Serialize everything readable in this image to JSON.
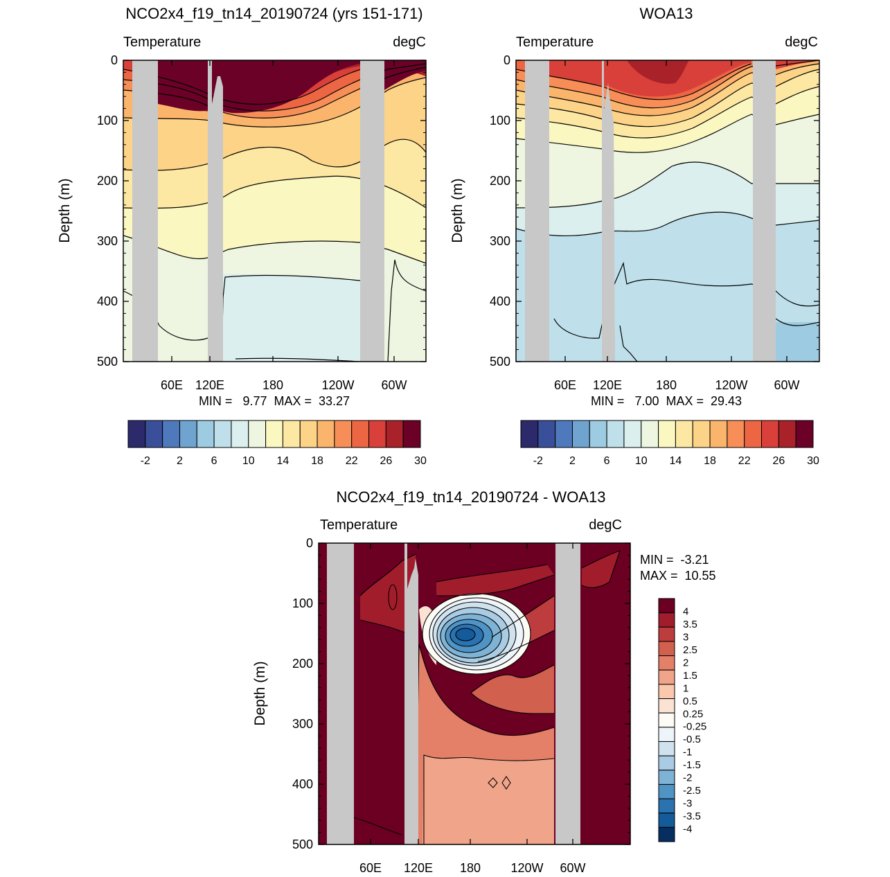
{
  "colors": {
    "temperature_scale": [
      "#2c2a6b",
      "#3a4f9a",
      "#4f79bd",
      "#6ea4cf",
      "#9ccbe2",
      "#bfe0ea",
      "#dcefef",
      "#eef6e2",
      "#fbf7c0",
      "#fde8a3",
      "#fdd387",
      "#fbb46c",
      "#f78e57",
      "#ec6644",
      "#d9403a",
      "#a92129",
      "#6b0127"
    ],
    "difference_scale": [
      "#062e60",
      "#145b9c",
      "#2b72b0",
      "#4f94c4",
      "#7fb3d6",
      "#a9cce4",
      "#cfe2ee",
      "#eef5fa",
      "#fdfbf6",
      "#fbe3d4",
      "#f9c8ad",
      "#f0a58a",
      "#e48067",
      "#d2604f",
      "#bd3c3e",
      "#a11d2c",
      "#6b0022"
    ],
    "land_mask": "#c8c8c8"
  },
  "chart_data": [
    {
      "type": "heatmap",
      "title": "NCO2x4_f19_tn14_20190724 (yrs 151-171)",
      "left_label": "Temperature",
      "right_label": "degC",
      "ylabel": "Depth (m)",
      "ylim": [
        0,
        500
      ],
      "y_ticks": [
        "0",
        "100",
        "200",
        "300",
        "400",
        "500"
      ],
      "x_ticks": [
        "60E",
        "120E",
        "180",
        "120W",
        "60W"
      ],
      "stats": "MIN =   9.77  MAX =  33.27",
      "colorbar_labels": [
        "-2",
        "2",
        "6",
        "10",
        "14",
        "18",
        "22",
        "26",
        "30"
      ],
      "isotherm_depths_m": {
        "west": [
          20,
          40,
          60,
          80,
          120,
          170,
          240,
          320,
          410
        ],
        "mid": [
          80,
          110,
          140,
          175,
          230,
          290,
          360,
          470
        ],
        "east": [
          15,
          35,
          60,
          95,
          140,
          200,
          260,
          330,
          400
        ]
      }
    },
    {
      "type": "heatmap",
      "title": "WOA13",
      "left_label": "Temperature",
      "right_label": "degC",
      "ylabel": "Depth (m)",
      "ylim": [
        0,
        500
      ],
      "y_ticks": [
        "0",
        "100",
        "200",
        "300",
        "400",
        "500"
      ],
      "x_ticks": [
        "60E",
        "120E",
        "180",
        "120W",
        "60W"
      ],
      "stats": "MIN =   7.00  MAX =  29.43",
      "colorbar_labels": [
        "-2",
        "2",
        "6",
        "10",
        "14",
        "18",
        "22",
        "26",
        "30"
      ],
      "isotherm_depths_m": {
        "west": [
          15,
          45,
          80,
          120,
          160,
          230,
          300,
          380,
          460
        ],
        "mid": [
          90,
          120,
          150,
          185,
          230,
          260,
          330,
          400
        ],
        "east": [
          10,
          30,
          55,
          90,
          130,
          190,
          250,
          330,
          440
        ]
      }
    },
    {
      "type": "heatmap",
      "title": "NCO2x4_f19_tn14_20190724 - WOA13",
      "left_label": "Temperature",
      "right_label": "degC",
      "ylabel": "Depth (m)",
      "ylim": [
        0,
        500
      ],
      "y_ticks": [
        "0",
        "100",
        "200",
        "300",
        "400",
        "500"
      ],
      "x_ticks": [
        "60E",
        "120E",
        "180",
        "120W",
        "60W"
      ],
      "stats_min": "MIN =  -3.21",
      "stats_max": "MAX =  10.55",
      "colorbar_labels": [
        "4",
        "3.5",
        "3",
        "2.5",
        "2",
        "1.5",
        "1",
        "0.5",
        "0.25",
        "-0.25",
        "-0.5",
        "-1",
        "-1.5",
        "-2",
        "-2.5",
        "-3",
        "-3.5",
        "-4"
      ],
      "cold_anomaly_core_depth_m": [
        120,
        190
      ]
    }
  ]
}
